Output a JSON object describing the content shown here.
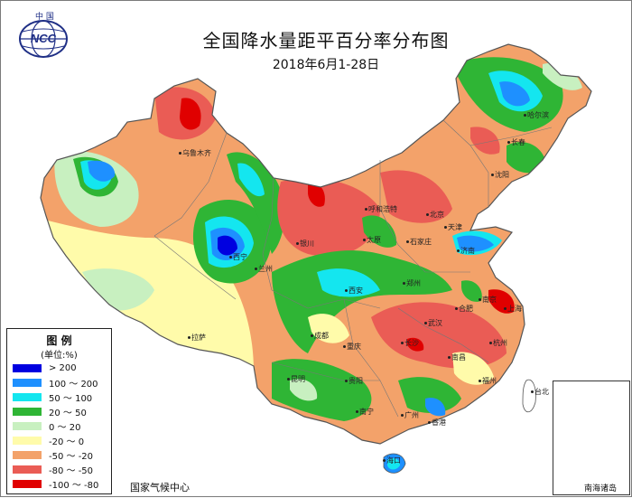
{
  "header": {
    "title": "全国降水量距平百分率分布图",
    "subtitle": "2018年6月1-28日",
    "logo_top": "中 国",
    "logo_text": "NCC"
  },
  "legend": {
    "title": "图 例",
    "unit": "(单位:%)",
    "items": [
      {
        "label": "> 200",
        "color": "#0000e0"
      },
      {
        "label": "100 ～ 200",
        "color": "#1e90ff"
      },
      {
        "label": "50 ～ 100",
        "color": "#14e6ef"
      },
      {
        "label": "20 ～ 50",
        "color": "#2fb535"
      },
      {
        "label": "0 ～ 20",
        "color": "#c8f0c0"
      },
      {
        "label": "-20 ～ 0",
        "color": "#fffbaa"
      },
      {
        "label": "-50 ～ -20",
        "color": "#f3a26a"
      },
      {
        "label": "-80 ～ -50",
        "color": "#ea5c55"
      },
      {
        "label": "-100 ～ -80",
        "color": "#e00000"
      }
    ]
  },
  "footer": {
    "credit": "国家气候中心",
    "inset_label": "南海诸岛"
  },
  "cities": [
    {
      "name": "乌鲁木齐"
    },
    {
      "name": "拉萨"
    },
    {
      "name": "西宁"
    },
    {
      "name": "兰州"
    },
    {
      "name": "银川"
    },
    {
      "name": "呼和浩特"
    },
    {
      "name": "北京"
    },
    {
      "name": "天津"
    },
    {
      "name": "太原"
    },
    {
      "name": "石家庄"
    },
    {
      "name": "济南"
    },
    {
      "name": "郑州"
    },
    {
      "name": "西安"
    },
    {
      "name": "成都"
    },
    {
      "name": "重庆"
    },
    {
      "name": "贵阳"
    },
    {
      "name": "昆明"
    },
    {
      "name": "南宁"
    },
    {
      "name": "广州"
    },
    {
      "name": "香港"
    },
    {
      "name": "福州"
    },
    {
      "name": "台北"
    },
    {
      "name": "杭州"
    },
    {
      "name": "上海"
    },
    {
      "name": "南京"
    },
    {
      "name": "合肥"
    },
    {
      "name": "武汉"
    },
    {
      "name": "长沙"
    },
    {
      "name": "南昌"
    },
    {
      "name": "沈阳"
    },
    {
      "name": "长春"
    },
    {
      "name": "哈尔滨"
    },
    {
      "name": "海口"
    }
  ]
}
